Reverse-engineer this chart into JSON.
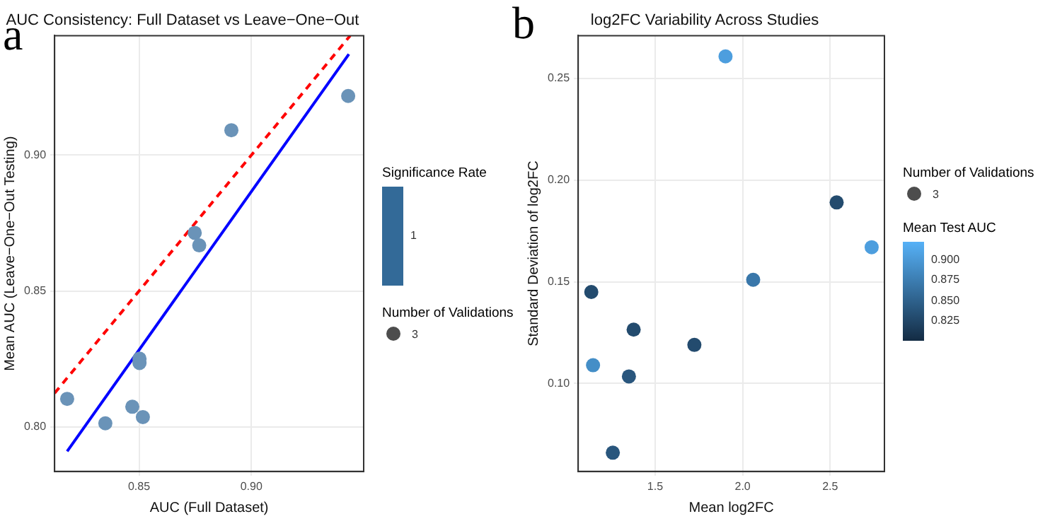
{
  "chart_data": [
    {
      "type": "scatter",
      "title": "AUC Consistency: Full Dataset vs Leave−One−Out",
      "xlabel": "AUC (Full Dataset)",
      "ylabel": "Mean AUC (Leave−One−Out Testing)",
      "xlim": [
        0.8124,
        0.95
      ],
      "ylim": [
        0.7836,
        0.944
      ],
      "xticks": [
        0.85,
        {
          "value": 0.9,
          "label": "0.90"
        }
      ],
      "yticks": [
        {
          "value": 0.8,
          "label": "0.80"
        },
        0.85,
        {
          "value": 0.9,
          "label": "0.90"
        }
      ],
      "grid": true,
      "clabel": "Significance Rate",
      "legend_title": "Number of Validations",
      "annotations": [
        "a",
        "1",
        "3"
      ],
      "series": [
        {
          "marker": "circle",
          "color": "#6a93b8",
          "x": [
            0.818,
            0.835,
            0.847,
            0.8517,
            0.8502,
            0.8502,
            0.8748,
            0.8768,
            0.8911,
            0.9431
          ],
          "values": [
            0.8103,
            0.8013,
            0.8074,
            0.8036,
            0.8251,
            0.8235,
            0.8714,
            0.8668,
            0.9092,
            0.9218
          ]
        },
        {
          "type": "line",
          "color": "#0000ff",
          "x": [
            0.818,
            0.9434
          ],
          "values": [
            0.791,
            0.9372
          ]
        },
        {
          "type": "line",
          "color": "#ff0000",
          "line_style": "dashed",
          "x": [
            0.8124,
            0.944
          ],
          "values": [
            0.8124,
            0.944
          ]
        }
      ]
    },
    {
      "type": "scatter",
      "title": "log2FC Variability Across Studies",
      "xlabel": "Mean log2FC",
      "ylabel": "Standard Deviation of log2FC",
      "annotations": [
        "b",
        "3"
      ],
      "xlim": [
        1.06,
        2.81
      ],
      "ylim": [
        0.0568,
        0.271
      ],
      "xticks": [
        1.5,
        {
          "value": 2,
          "label": "2.0"
        },
        2.5
      ],
      "yticks": [
        {
          "value": 0.1,
          "label": "0.10"
        },
        0.15,
        {
          "value": 0.2,
          "label": "0.20"
        },
        0.25
      ],
      "grid": true,
      "clabel": "Mean Test AUC",
      "clim": [
        0.801,
        0.922
      ],
      "cticks": [
        {
          "value": 0.825,
          "label": "0.825"
        },
        {
          "value": 0.85,
          "label": "0.850"
        },
        {
          "value": 0.875,
          "label": "0.875"
        },
        {
          "value": 0.9,
          "label": "0.900"
        }
      ],
      "legend_title": "Number of Validations",
      "series": [
        {
          "marker": "circle",
          "x": [
            1.135,
            1.145,
            1.258,
            1.35,
            1.377,
            1.724,
            1.902,
            2.06,
            2.537,
            2.737
          ],
          "values": [
            0.145,
            0.109,
            0.066,
            0.1035,
            0.1265,
            0.119,
            0.2608,
            0.151,
            0.189,
            0.167
          ],
          "cvalues": [
            0.83,
            0.89,
            0.84,
            0.84,
            0.83,
            0.83,
            0.905,
            0.87,
            0.83,
            0.905
          ]
        }
      ]
    }
  ]
}
